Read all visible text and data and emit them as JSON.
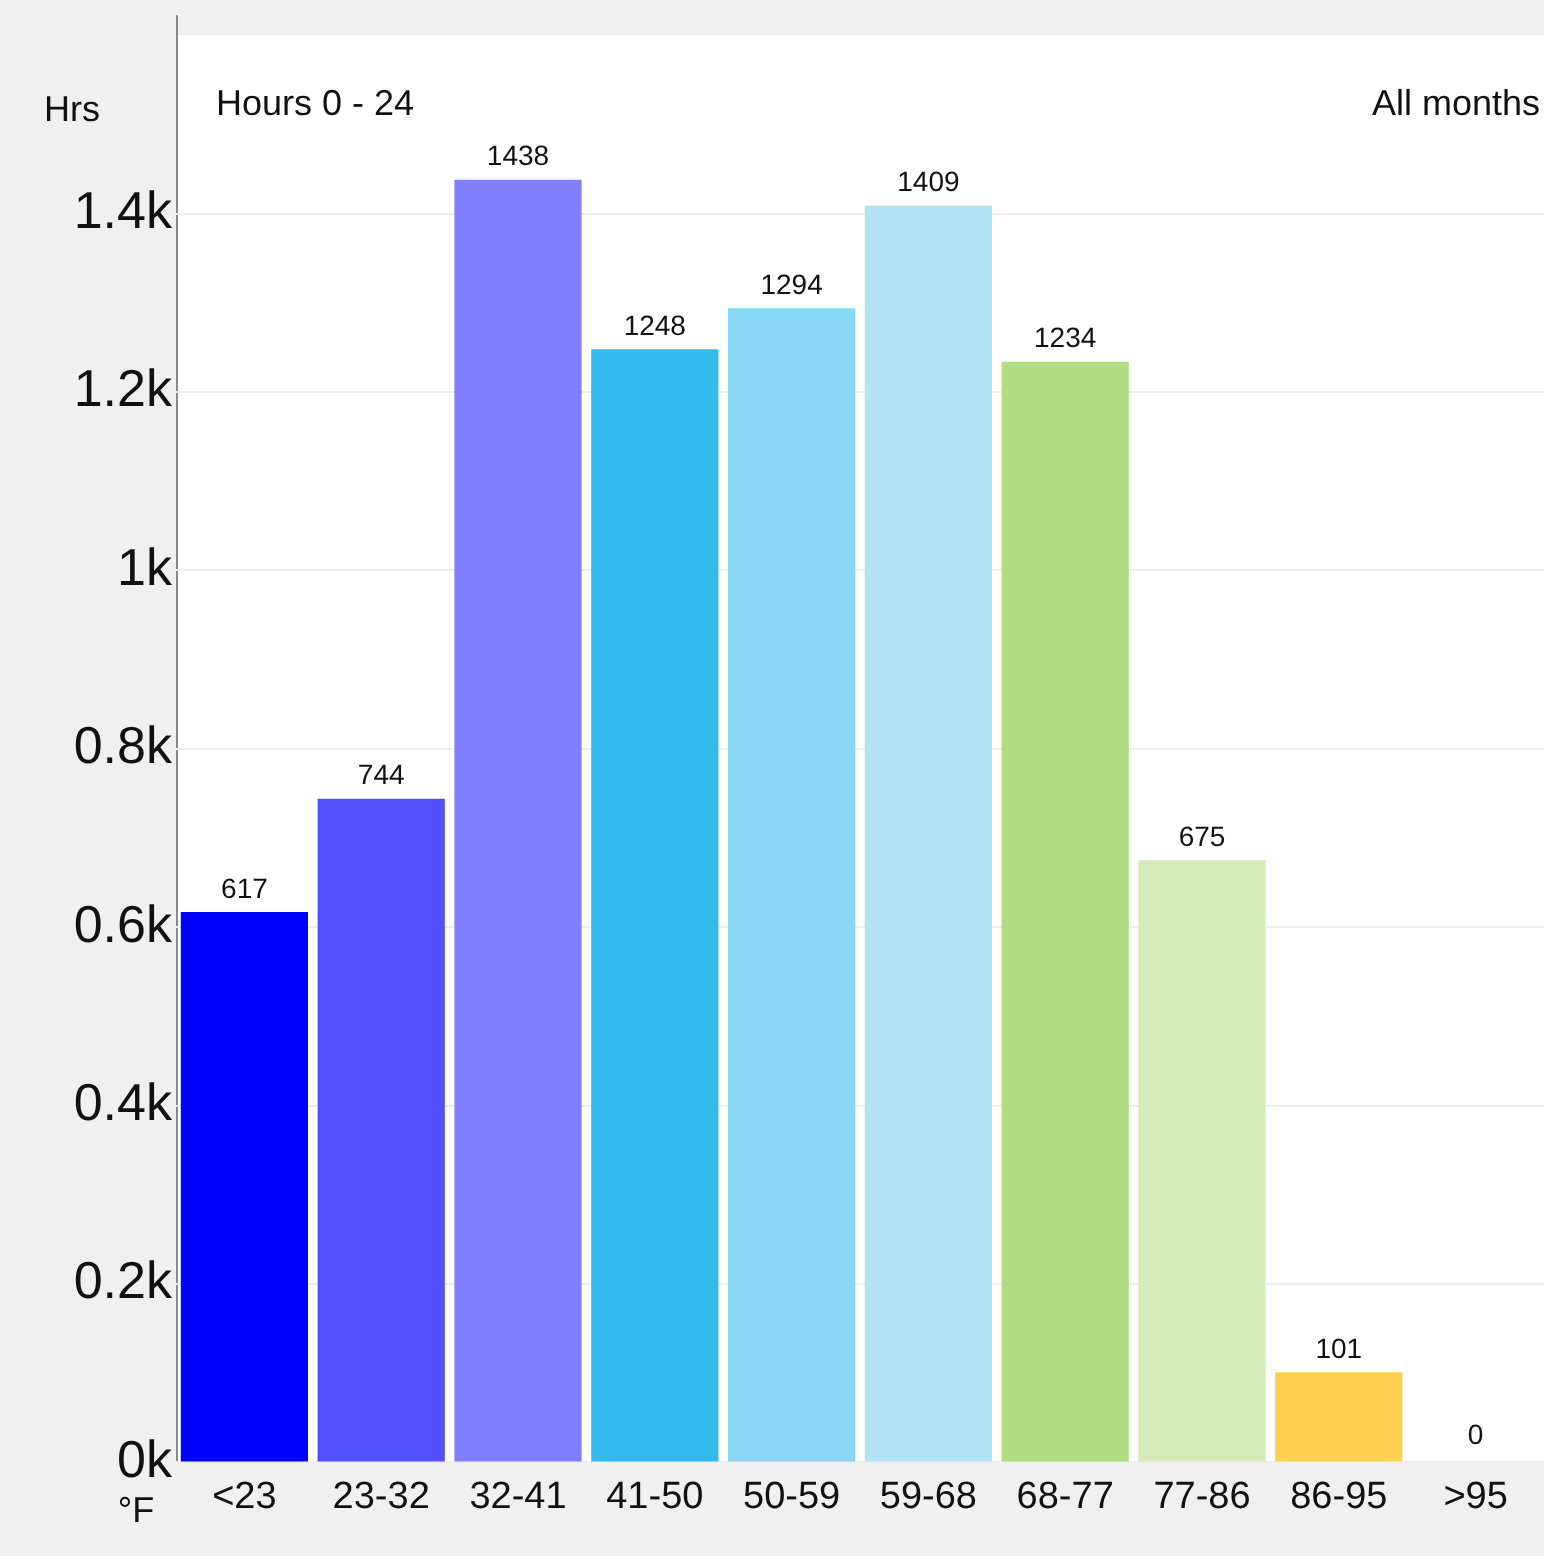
{
  "chart_data": {
    "type": "bar",
    "ylabel": "Hrs",
    "xlabel": "°F",
    "annotations": [
      "Hours 0 - 24",
      "All months"
    ],
    "categories": [
      "<23",
      "23-32",
      "32-41",
      "41-50",
      "50-59",
      "59-68",
      "68-77",
      "77-86",
      "86-95",
      ">95"
    ],
    "values": [
      617,
      744,
      1438,
      1248,
      1294,
      1409,
      1234,
      675,
      101,
      0
    ],
    "colors": [
      "#0000ff",
      "#5050ff",
      "#8080ff",
      "#33bbee",
      "#88d8f5",
      "#b0e4f5",
      "#b0dd80",
      "#d4eab8",
      "#ffd050",
      "#cccccc"
    ],
    "ylim": [
      0,
      1600
    ],
    "yticks": [
      {
        "value": 0,
        "label": "0k"
      },
      {
        "value": 200,
        "label": "0.2k"
      },
      {
        "value": 400,
        "label": "0.4k"
      },
      {
        "value": 600,
        "label": "0.6k"
      },
      {
        "value": 800,
        "label": "0.8k"
      },
      {
        "value": 1000,
        "label": "1k"
      },
      {
        "value": 1200,
        "label": "1.2k"
      },
      {
        "value": 1400,
        "label": "1.4k"
      }
    ],
    "grid": "y",
    "data_labels": true,
    "legend": false
  }
}
